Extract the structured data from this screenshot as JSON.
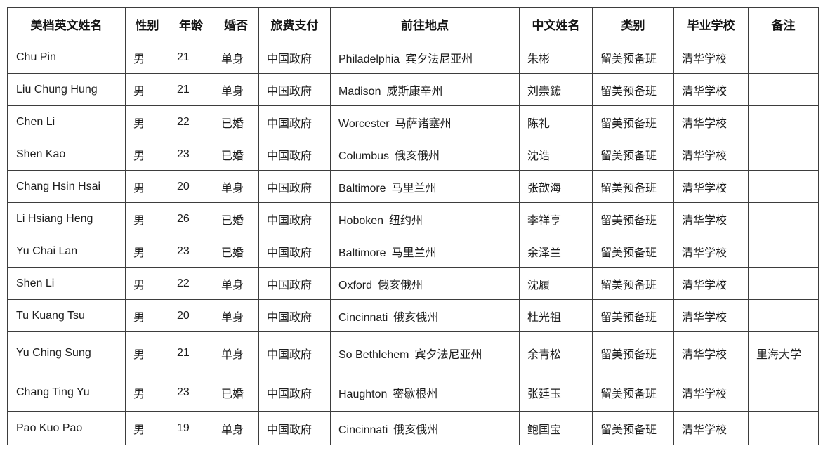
{
  "colors": {
    "background": "#ffffff",
    "text": "#1d1d1d",
    "border": "#3d3d3d"
  },
  "table": {
    "columns": [
      {
        "key": "en_name",
        "label": "美档英文姓名"
      },
      {
        "key": "gender",
        "label": "性别"
      },
      {
        "key": "age",
        "label": "年龄"
      },
      {
        "key": "marital",
        "label": "婚否"
      },
      {
        "key": "payment",
        "label": "旅费支付"
      },
      {
        "key": "destination",
        "label": "前往地点"
      },
      {
        "key": "cn_name",
        "label": "中文姓名"
      },
      {
        "key": "category",
        "label": "类别"
      },
      {
        "key": "school",
        "label": "毕业学校"
      },
      {
        "key": "remarks",
        "label": "备注"
      }
    ],
    "rows": [
      {
        "en_name": "Chu Pin",
        "gender": "男",
        "age": "21",
        "marital": "单身",
        "payment": "中国政府",
        "dest_city": "Philadelphia",
        "dest_state": "宾夕法尼亚州",
        "cn_name": "朱彬",
        "category": "留美预备班",
        "school": "清华学校",
        "remarks": ""
      },
      {
        "en_name": "Liu Chung Hung",
        "gender": "男",
        "age": "21",
        "marital": "单身",
        "payment": "中国政府",
        "dest_city": "Madison",
        "dest_state": "威斯康辛州",
        "cn_name": "刘崇鋐",
        "category": "留美预备班",
        "school": "清华学校",
        "remarks": ""
      },
      {
        "en_name": "Chen Li",
        "gender": "男",
        "age": "22",
        "marital": "已婚",
        "payment": "中国政府",
        "dest_city": "Worcester",
        "dest_state": "马萨诸塞州",
        "cn_name": "陈礼",
        "category": "留美预备班",
        "school": "清华学校",
        "remarks": ""
      },
      {
        "en_name": "Shen Kao",
        "gender": "男",
        "age": "23",
        "marital": "已婚",
        "payment": "中国政府",
        "dest_city": "Columbus",
        "dest_state": "俄亥俄州",
        "cn_name": "沈诰",
        "category": "留美预备班",
        "school": "清华学校",
        "remarks": ""
      },
      {
        "en_name": "Chang Hsin Hsai",
        "gender": "男",
        "age": "20",
        "marital": "单身",
        "payment": "中国政府",
        "dest_city": "Baltimore",
        "dest_state": "马里兰州",
        "cn_name": "张歆海",
        "category": "留美预备班",
        "school": "清华学校",
        "remarks": ""
      },
      {
        "en_name": "Li Hsiang Heng",
        "gender": "男",
        "age": "26",
        "marital": "已婚",
        "payment": "中国政府",
        "dest_city": "Hoboken",
        "dest_state": "纽约州",
        "cn_name": "李祥亨",
        "category": "留美预备班",
        "school": "清华学校",
        "remarks": ""
      },
      {
        "en_name": "Yu Chai Lan",
        "gender": "男",
        "age": "23",
        "marital": "已婚",
        "payment": "中国政府",
        "dest_city": "Baltimore",
        "dest_state": "马里兰州",
        "cn_name": "余泽兰",
        "category": "留美预备班",
        "school": "清华学校",
        "remarks": ""
      },
      {
        "en_name": "Shen Li",
        "gender": "男",
        "age": "22",
        "marital": "单身",
        "payment": "中国政府",
        "dest_city": "Oxford",
        "dest_state": "俄亥俄州",
        "cn_name": "沈履",
        "category": "留美预备班",
        "school": "清华学校",
        "remarks": ""
      },
      {
        "en_name": "Tu Kuang Tsu",
        "gender": "男",
        "age": "20",
        "marital": "单身",
        "payment": "中国政府",
        "dest_city": "Cincinnati",
        "dest_state": "俄亥俄州",
        "cn_name": "杜光祖",
        "category": "留美预备班",
        "school": "清华学校",
        "remarks": ""
      },
      {
        "en_name": "Yu Ching Sung",
        "gender": "男",
        "age": "21",
        "marital": "单身",
        "payment": "中国政府",
        "dest_city": "So Bethlehem",
        "dest_state": "宾夕法尼亚州",
        "cn_name": "余青松",
        "category": "留美预备班",
        "school": "清华学校",
        "remarks": "里海大学"
      },
      {
        "en_name": "Chang Ting Yu",
        "gender": "男",
        "age": "23",
        "marital": "已婚",
        "payment": "中国政府",
        "dest_city": "Haughton",
        "dest_state": "密歇根州",
        "cn_name": "张廷玉",
        "category": "留美预备班",
        "school": "清华学校",
        "remarks": ""
      },
      {
        "en_name": "Pao Kuo Pao",
        "gender": "男",
        "age": "19",
        "marital": "单身",
        "payment": "中国政府",
        "dest_city": "Cincinnati",
        "dest_state": "俄亥俄州",
        "cn_name": "鲍国宝",
        "category": "留美预备班",
        "school": "清华学校",
        "remarks": ""
      }
    ]
  }
}
